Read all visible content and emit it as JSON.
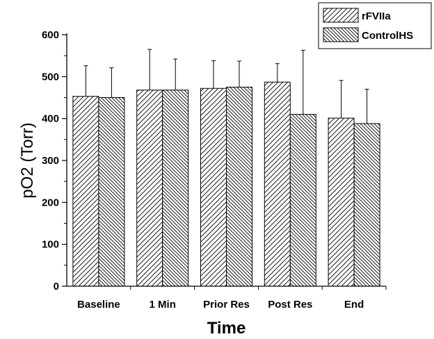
{
  "chart_data": {
    "type": "bar",
    "categories": [
      "Baseline",
      "1 Min",
      "Prior Res",
      "Post Res",
      "End"
    ],
    "series": [
      {
        "name": "rFVIIa",
        "values": [
          453,
          468,
          472,
          487,
          401
        ],
        "errors": [
          73,
          97,
          66,
          44,
          90
        ],
        "pattern": "forward-diagonal"
      },
      {
        "name": "ControlHS",
        "values": [
          450,
          468,
          475,
          410,
          388
        ],
        "errors": [
          71,
          74,
          62,
          153,
          82
        ],
        "pattern": "back-diagonal"
      }
    ],
    "xlabel": "Time",
    "ylabel": "pO2 (Torr)",
    "ylim": [
      0,
      600
    ],
    "yticks": [
      0,
      100,
      200,
      300,
      400,
      500,
      600
    ],
    "grid": false,
    "legend": "top-right",
    "colors": {
      "bar_stroke": "#000000",
      "background": "#ffffff"
    }
  }
}
